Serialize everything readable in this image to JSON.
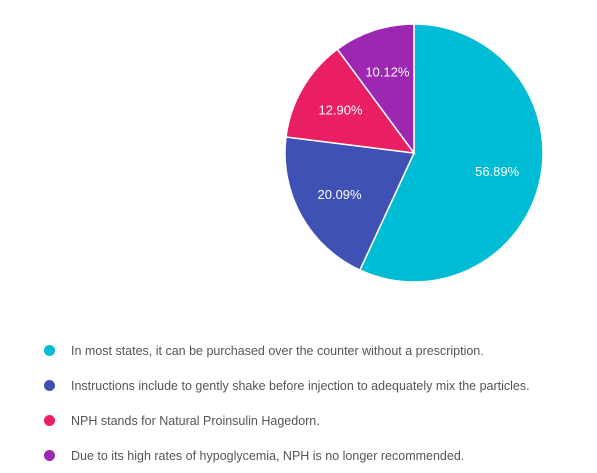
{
  "chart_data": {
    "type": "pie",
    "categories": [
      "In most states, it can be purchased over the counter without a prescription.",
      "Instructions include to gently shake before injection to adequately mix the particles.",
      "NPH stands for Natural Proinsulin Hagedorn.",
      "Due to its high rates of hypoglycemia, NPH is no longer recommended."
    ],
    "values": [
      56.89,
      20.09,
      12.9,
      10.12
    ],
    "labels": [
      "56.89%",
      "20.09%",
      "12.90%",
      "10.12%"
    ],
    "colors": [
      "#00BCD4",
      "#3F51B5",
      "#E91E63",
      "#9C27B0"
    ],
    "legend_position": "bottom"
  }
}
